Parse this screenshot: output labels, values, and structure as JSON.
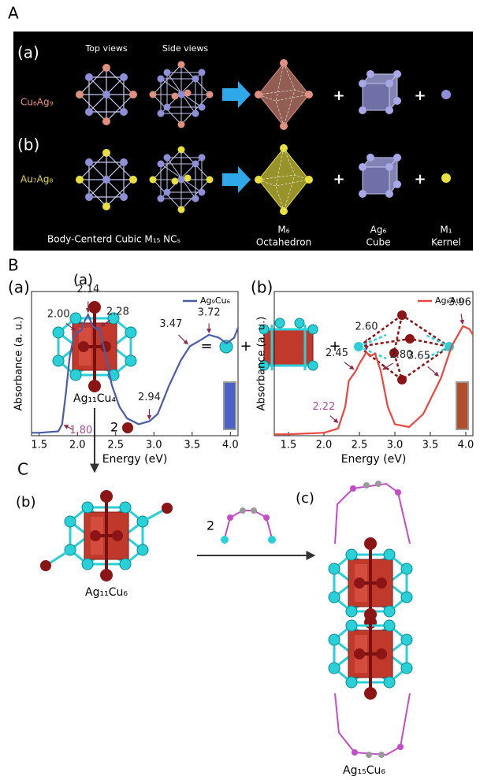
{
  "panel_a": {
    "letter": "A",
    "row_a": "(a)",
    "top_views": "Top views",
    "side_views": "Side views",
    "row_a_formula": "Cu₆Ag₉",
    "row_b": "(b)",
    "row_b_formula": "Au₇Ag₈",
    "plus": "+",
    "footer": "Body-Centerd Cubic M₁₅ NCₛ",
    "parts": [
      {
        "name": "M₆",
        "desc": "Octahedron"
      },
      {
        "name": "Ag₆",
        "desc": "Cube"
      },
      {
        "name": "M₁",
        "desc": "Kernel"
      }
    ]
  },
  "panel_b": {
    "letter": "B"
  },
  "chart_data": [
    {
      "type": "line",
      "label": "(a)",
      "xlabel": "Energy (eV)",
      "ylabel": "Absorbance (a. u.)",
      "xlim": [
        1.4,
        4.1
      ],
      "ylim": [
        0,
        1
      ],
      "xticks": [
        1.5,
        {
          "value": 2,
          "label": "2.0"
        },
        2.5,
        {
          "value": 3,
          "label": "3.0"
        },
        3.5,
        {
          "value": 4,
          "label": "4.0"
        }
      ],
      "legend": "upper right",
      "x": [
        1.4,
        1.5,
        1.75,
        1.8,
        1.85,
        1.9,
        1.95,
        2.0,
        2.05,
        2.1,
        2.14,
        2.2,
        2.25,
        2.28,
        2.35,
        2.45,
        2.55,
        2.65,
        2.8,
        2.94,
        3.05,
        3.2,
        3.35,
        3.47,
        3.6,
        3.72,
        3.85,
        3.95,
        4.05,
        4.1
      ],
      "series": [
        {
          "name": "Ag₉Cu₆",
          "color": "#4a5ba8",
          "values": [
            0.02,
            0.02,
            0.03,
            0.08,
            0.3,
            0.55,
            0.68,
            0.72,
            0.73,
            0.8,
            0.84,
            0.76,
            0.74,
            0.75,
            0.6,
            0.35,
            0.2,
            0.12,
            0.08,
            0.1,
            0.15,
            0.35,
            0.52,
            0.62,
            0.66,
            0.7,
            0.68,
            0.64,
            0.68,
            0.75
          ]
        }
      ],
      "annotations": [
        {
          "x": 2.0,
          "label": "2.00"
        },
        {
          "x": 2.14,
          "label": "2.14"
        },
        {
          "x": 2.28,
          "label": "2.28"
        },
        {
          "x": 2.94,
          "label": "2.94"
        },
        {
          "x": 3.47,
          "label": "3.47"
        },
        {
          "x": 3.72,
          "label": "3.72"
        },
        {
          "x": 1.8,
          "label": "1.80",
          "color": "#a8508f"
        }
      ]
    },
    {
      "type": "line",
      "label": "(b)",
      "xlabel": "Energy (eV)",
      "ylabel": "Absorbance (a. u.)",
      "xlim": [
        1.3,
        4.1
      ],
      "ylim": [
        0,
        1
      ],
      "xticks": [
        1.5,
        {
          "value": 2,
          "label": "2.0"
        },
        2.5,
        {
          "value": 3,
          "label": "3.0"
        },
        3.5,
        {
          "value": 4,
          "label": "4.0"
        }
      ],
      "legend": "upper right",
      "x": [
        1.3,
        1.5,
        2.0,
        2.2,
        2.3,
        2.35,
        2.45,
        2.5,
        2.6,
        2.65,
        2.72,
        2.8,
        2.9,
        3.0,
        3.2,
        3.4,
        3.65,
        3.8,
        3.96,
        4.05,
        4.1
      ],
      "series": [
        {
          "name": "Ag₈Au₇",
          "color": "#e8473f",
          "values": [
            0.01,
            0.01,
            0.02,
            0.05,
            0.2,
            0.38,
            0.45,
            0.5,
            0.58,
            0.55,
            0.57,
            0.45,
            0.2,
            0.08,
            0.06,
            0.15,
            0.4,
            0.62,
            0.76,
            0.74,
            0.7
          ]
        }
      ],
      "annotations": [
        {
          "x": 2.45,
          "label": "2.45"
        },
        {
          "x": 2.6,
          "label": "2.60"
        },
        {
          "x": 2.8,
          "label": "2.80"
        },
        {
          "x": 3.65,
          "label": "3.65"
        },
        {
          "x": 3.96,
          "label": "3.96"
        },
        {
          "x": 2.22,
          "label": "2.22",
          "color": "#a8508f"
        }
      ]
    }
  ],
  "panel_c": {
    "letter": "C",
    "sub_a": "(a)",
    "equals": "=",
    "plus": "+",
    "formula_a": "Ag₁₁Cu₄",
    "count": "2",
    "sub_b": "(b)",
    "formula_b": "Ag₁₁Cu₆",
    "sub_c": "(c)",
    "formula_c": "Ag₁₅Cu₆"
  }
}
